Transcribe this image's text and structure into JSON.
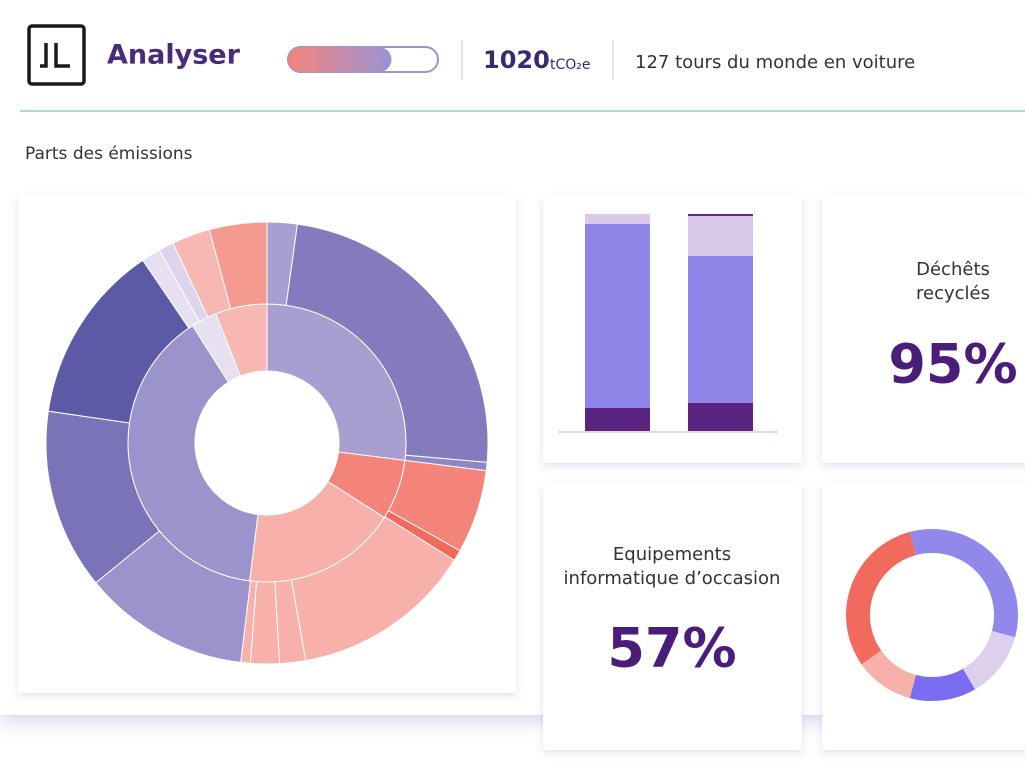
{
  "header": {
    "title": "Analyser",
    "progress": 69,
    "total": 1020,
    "unit": "tCO₂e",
    "equivalence": "127 tours du monde en voiture"
  },
  "section_title": "Parts des émissions",
  "sunburst": {
    "inner": [
      {
        "value": 27,
        "color": "#a89fd0"
      },
      {
        "value": 7,
        "color": "#f4847a"
      },
      {
        "value": 18,
        "color": "#f7b0aa"
      },
      {
        "value": 39,
        "color": "#9b93cb"
      },
      {
        "value": 3,
        "color": "#e6e0f0"
      },
      {
        "value": 6,
        "color": "#f7b8b3"
      }
    ],
    "outer": [
      {
        "value": 2.2,
        "color": "#a89fd0"
      },
      {
        "value": 24.2,
        "color": "#837bbd"
      },
      {
        "value": 0.6,
        "color": "#8f87c5"
      },
      {
        "value": 6.1,
        "color": "#f4847a"
      },
      {
        "value": 0.8,
        "color": "#f26a5e"
      },
      {
        "value": 13.3,
        "color": "#f7b0aa"
      },
      {
        "value": 1.9,
        "color": "#f7b0aa"
      },
      {
        "value": 2.1,
        "color": "#f7b0aa"
      },
      {
        "value": 0.7,
        "color": "#f7b0aa"
      },
      {
        "value": 12.2,
        "color": "#9b93cb"
      },
      {
        "value": 13.2,
        "color": "#7b73b8"
      },
      {
        "value": 13.2,
        "color": "#5c59a6"
      },
      {
        "value": 1.4,
        "color": "#e6e0f0"
      },
      {
        "value": 1.1,
        "color": "#dcd5ec"
      },
      {
        "value": 2.8,
        "color": "#f7b8b3"
      },
      {
        "value": 4.2,
        "color": "#f49a8f"
      }
    ]
  },
  "stacked_bars": [
    [
      {
        "value": 10.6,
        "color": "#5a2380"
      },
      {
        "value": 84.8,
        "color": "#8f85e8"
      },
      {
        "value": 4.6,
        "color": "#d9c8ea"
      }
    ],
    [
      {
        "value": 12.9,
        "color": "#5a2380"
      },
      {
        "value": 67.7,
        "color": "#8f85e8"
      },
      {
        "value": 18.4,
        "color": "#d9c8ea"
      },
      {
        "value": 0.9,
        "color": "#5a2380"
      }
    ]
  ],
  "cards": [
    {
      "label_lines": [
        "Déchêts",
        "recyclés"
      ],
      "value": "95%"
    },
    {
      "label_lines": [
        "Equipements",
        "informatique d’occasion"
      ],
      "value": "57%"
    }
  ],
  "donut": [
    {
      "value": 120,
      "color": "#9088ea"
    },
    {
      "value": 45,
      "color": "#dcd0ec"
    },
    {
      "value": 45,
      "color": "#7a6cf0"
    },
    {
      "value": 40,
      "color": "#f7b0aa"
    },
    {
      "value": 110,
      "color": "#f26a5e"
    }
  ]
}
